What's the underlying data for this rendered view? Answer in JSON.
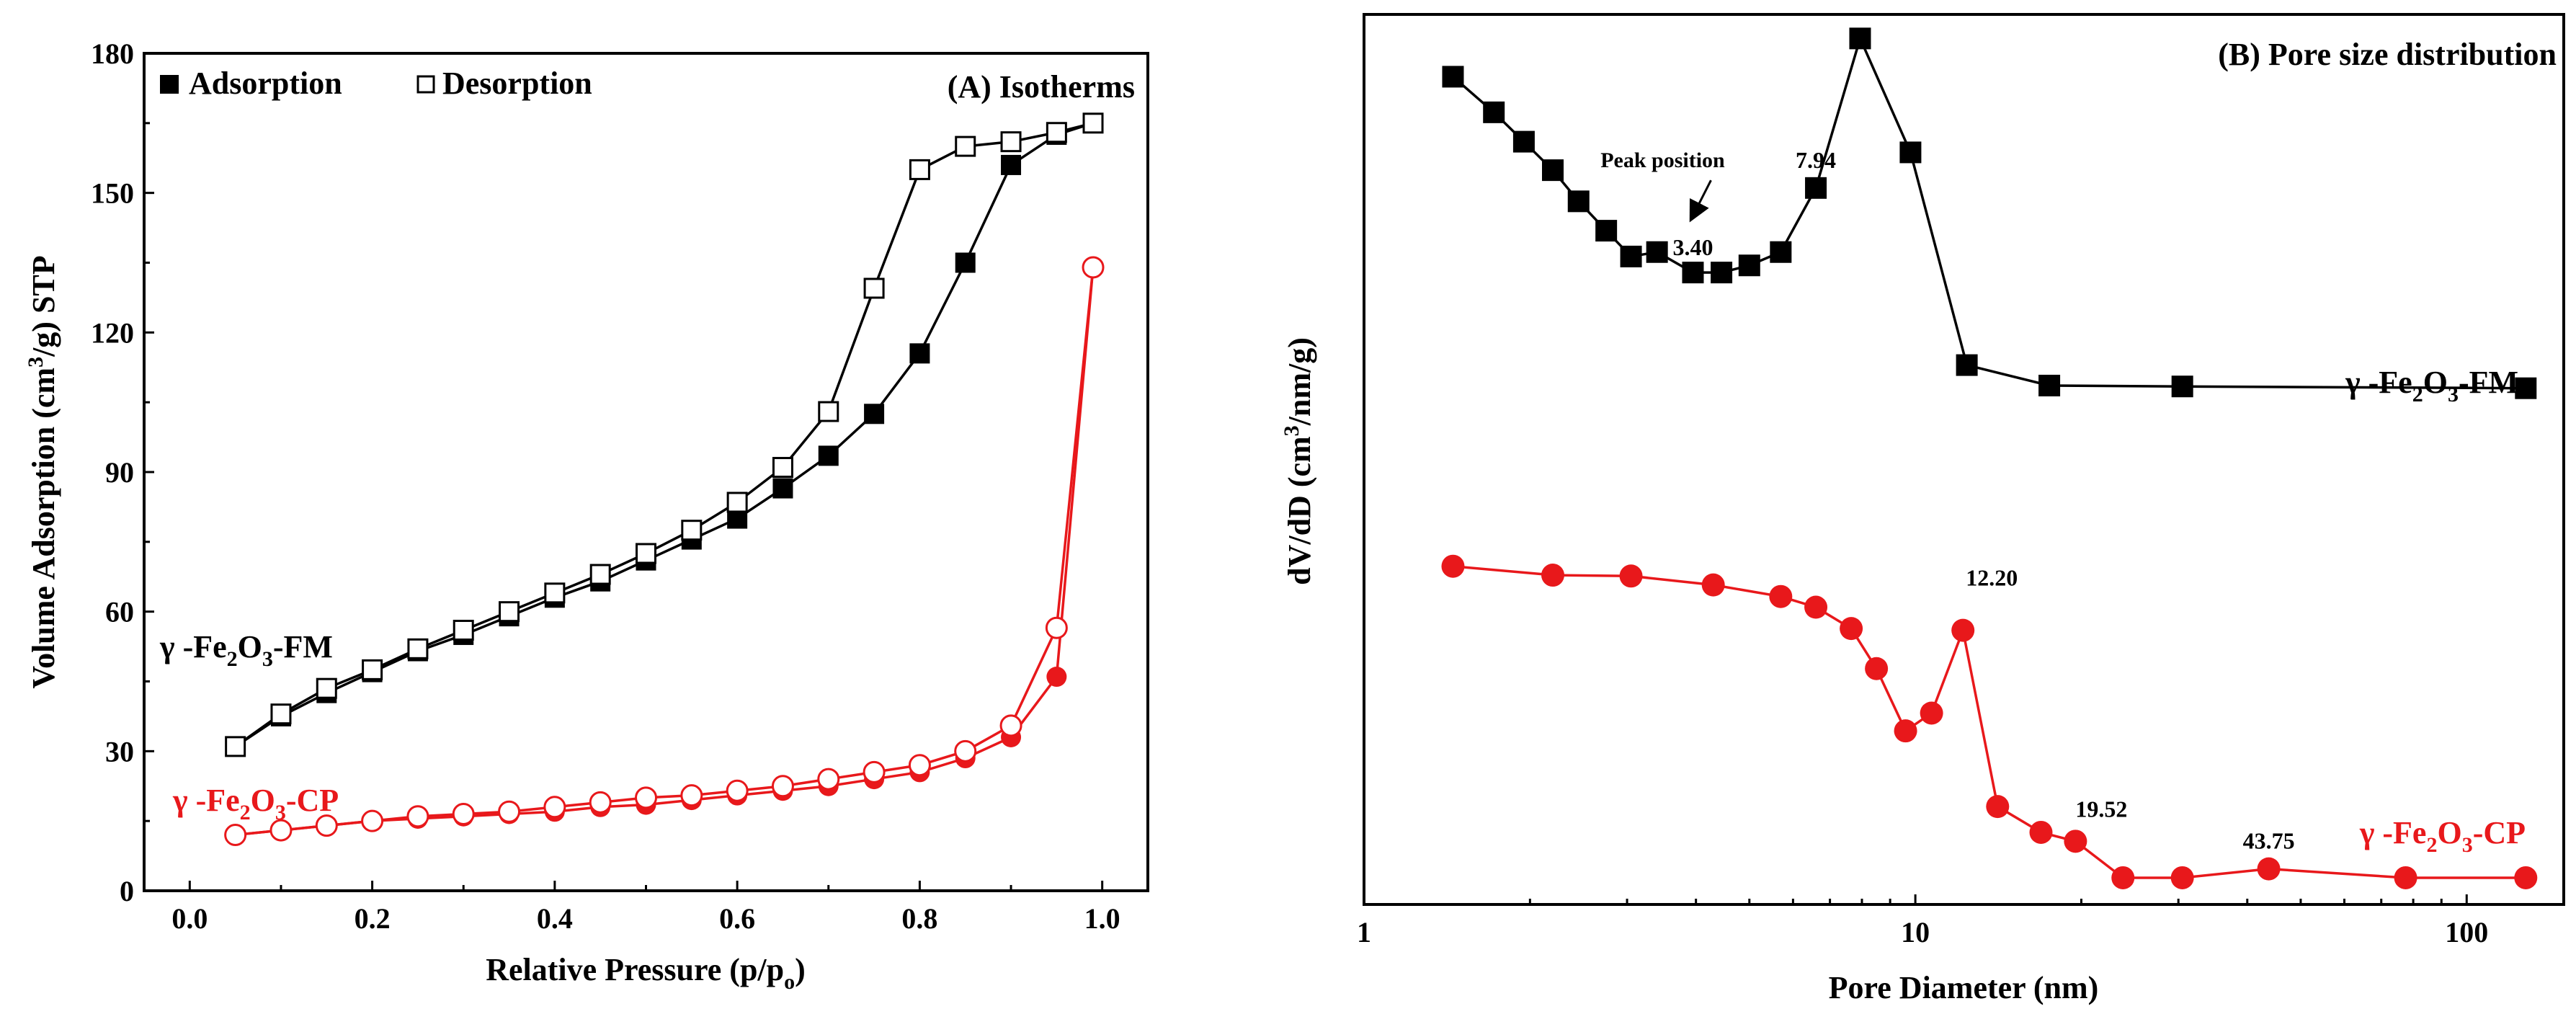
{
  "chart_data": [
    {
      "id": "A",
      "type": "scatter",
      "title": "(A) Isotherms",
      "xlabel": "Relative Pressure (p/p",
      "xlabel_sub": "o",
      "xlabel_suffix": ")",
      "ylabel_prefix": "Volume Adsorption (cm",
      "ylabel_sup": "3",
      "ylabel_suffix": "/g) STP",
      "xlim": [
        -0.05,
        1.05
      ],
      "ylim": [
        0,
        180
      ],
      "xticks": [
        "0.0",
        "0.2",
        "0.4",
        "0.6",
        "0.8",
        "1.0"
      ],
      "yticks": [
        "0",
        "30",
        "60",
        "90",
        "120",
        "150",
        "180"
      ],
      "legend": {
        "position": "top-left",
        "items": [
          {
            "symbol": "■",
            "label": "Adsorption"
          },
          {
            "symbol": "□",
            "label": "Desorption"
          }
        ]
      },
      "sample_labels": [
        {
          "text": "γ -Fe",
          "sub1": "2",
          "mid": "O",
          "sub2": "3",
          "tail": "-FM",
          "color": "#000000"
        },
        {
          "text": "γ -Fe",
          "sub1": "2",
          "mid": "O",
          "sub2": "3",
          "tail": "-CP",
          "color": "#e8181b"
        }
      ],
      "series": [
        {
          "name": "γ-Fe2O3-FM Adsorption",
          "color": "#000000",
          "marker": "filled-square",
          "x": [
            0.05,
            0.1,
            0.15,
            0.2,
            0.25,
            0.3,
            0.35,
            0.4,
            0.45,
            0.5,
            0.55,
            0.6,
            0.65,
            0.7,
            0.75,
            0.8,
            0.85,
            0.9,
            0.95,
            0.99
          ],
          "y": [
            31,
            37.5,
            42.5,
            47,
            51.5,
            55,
            59,
            63,
            66.5,
            71,
            75.5,
            80,
            86.5,
            93.5,
            102.5,
            115.5,
            135,
            156,
            162.5,
            165
          ]
        },
        {
          "name": "γ-Fe2O3-FM Desorption",
          "color": "#000000",
          "marker": "open-square",
          "x": [
            0.05,
            0.1,
            0.15,
            0.2,
            0.25,
            0.3,
            0.35,
            0.4,
            0.45,
            0.5,
            0.55,
            0.6,
            0.65,
            0.7,
            0.75,
            0.8,
            0.85,
            0.9,
            0.95,
            0.99
          ],
          "y": [
            31,
            38,
            43.5,
            47.5,
            52,
            56,
            60,
            64,
            68,
            72.5,
            77.5,
            83.5,
            91,
            103,
            129.5,
            155,
            160,
            161,
            163,
            165
          ]
        },
        {
          "name": "γ-Fe2O3-CP Adsorption",
          "color": "#e8181b",
          "marker": "filled-circle",
          "x": [
            0.05,
            0.1,
            0.15,
            0.2,
            0.25,
            0.3,
            0.35,
            0.4,
            0.45,
            0.5,
            0.55,
            0.6,
            0.65,
            0.7,
            0.75,
            0.8,
            0.85,
            0.9,
            0.95,
            0.99
          ],
          "y": [
            12,
            13,
            14,
            15,
            15.5,
            16,
            16.5,
            17,
            18,
            18.5,
            19.5,
            20.5,
            21.5,
            22.5,
            24,
            25.5,
            28.5,
            33,
            46,
            134
          ]
        },
        {
          "name": "γ-Fe2O3-CP Desorption",
          "color": "#e8181b",
          "marker": "open-circle",
          "x": [
            0.05,
            0.1,
            0.15,
            0.2,
            0.25,
            0.3,
            0.35,
            0.4,
            0.45,
            0.5,
            0.55,
            0.6,
            0.65,
            0.7,
            0.75,
            0.8,
            0.85,
            0.9,
            0.95,
            0.99
          ],
          "y": [
            12,
            13,
            14,
            15,
            16,
            16.5,
            17,
            18,
            19,
            20,
            20.5,
            21.5,
            22.5,
            24,
            25.5,
            27,
            30,
            35.5,
            56.5,
            134
          ]
        }
      ]
    },
    {
      "id": "B",
      "type": "line",
      "title": "(B) Pore size distribution",
      "xlabel": "Pore Diameter (nm)",
      "ylabel_prefix": "dV/dD (cm",
      "ylabel_sup": "3",
      "ylabel_suffix": "/nm/g)",
      "xscale": "log",
      "xlim": [
        1,
        150
      ],
      "ylim": [
        0,
        1
      ],
      "xticks": [
        "1",
        "10",
        "100"
      ],
      "yticks_shown": false,
      "annotations": [
        {
          "text": "7.94",
          "series": 0,
          "point": 12
        },
        {
          "text": "3.40",
          "series": 0,
          "point": 8
        },
        {
          "text": "Peak position",
          "arrow_to_series": 0,
          "arrow_to_point": 8
        },
        {
          "text": "12.20",
          "series": 1,
          "point": 11
        },
        {
          "text": "19.52",
          "series": 1,
          "point": 14
        },
        {
          "text": "43.75",
          "series": 1,
          "point": 17
        }
      ],
      "sample_labels": [
        {
          "text": "γ -Fe",
          "sub1": "2",
          "mid": "O",
          "sub2": "3",
          "tail": "-FM",
          "color": "#000000",
          "series": 0
        },
        {
          "text": "γ -Fe",
          "sub1": "2",
          "mid": "O",
          "sub2": "3",
          "tail": "-CP",
          "color": "#e8181b",
          "series": 1
        }
      ],
      "series": [
        {
          "name": "γ-Fe2O3-FM",
          "color": "#000000",
          "marker": "filled-square",
          "x": [
            1.45,
            1.72,
            1.95,
            2.2,
            2.45,
            2.75,
            3.05,
            3.4,
            3.95,
            4.45,
            5.0,
            5.7,
            6.6,
            7.94,
            9.8,
            12.4,
            17.5,
            30.5,
            128
          ],
          "y": [
            0.93,
            0.89,
            0.857,
            0.825,
            0.79,
            0.757,
            0.728,
            0.733,
            0.71,
            0.71,
            0.718,
            0.733,
            0.805,
            0.973,
            0.845,
            0.606,
            0.583,
            0.582,
            0.58
          ]
        },
        {
          "name": "γ-Fe2O3-CP",
          "color": "#e8181b",
          "marker": "filled-circle",
          "x": [
            1.45,
            2.2,
            3.05,
            4.3,
            5.7,
            6.6,
            7.65,
            8.5,
            9.6,
            10.7,
            12.2,
            14.1,
            16.9,
            19.52,
            23.8,
            30.5,
            43.75,
            77.5,
            128
          ],
          "y": [
            0.38,
            0.37,
            0.369,
            0.359,
            0.346,
            0.334,
            0.31,
            0.265,
            0.195,
            0.215,
            0.308,
            0.11,
            0.081,
            0.071,
            0.03,
            0.03,
            0.04,
            0.03,
            0.03
          ]
        }
      ]
    }
  ]
}
